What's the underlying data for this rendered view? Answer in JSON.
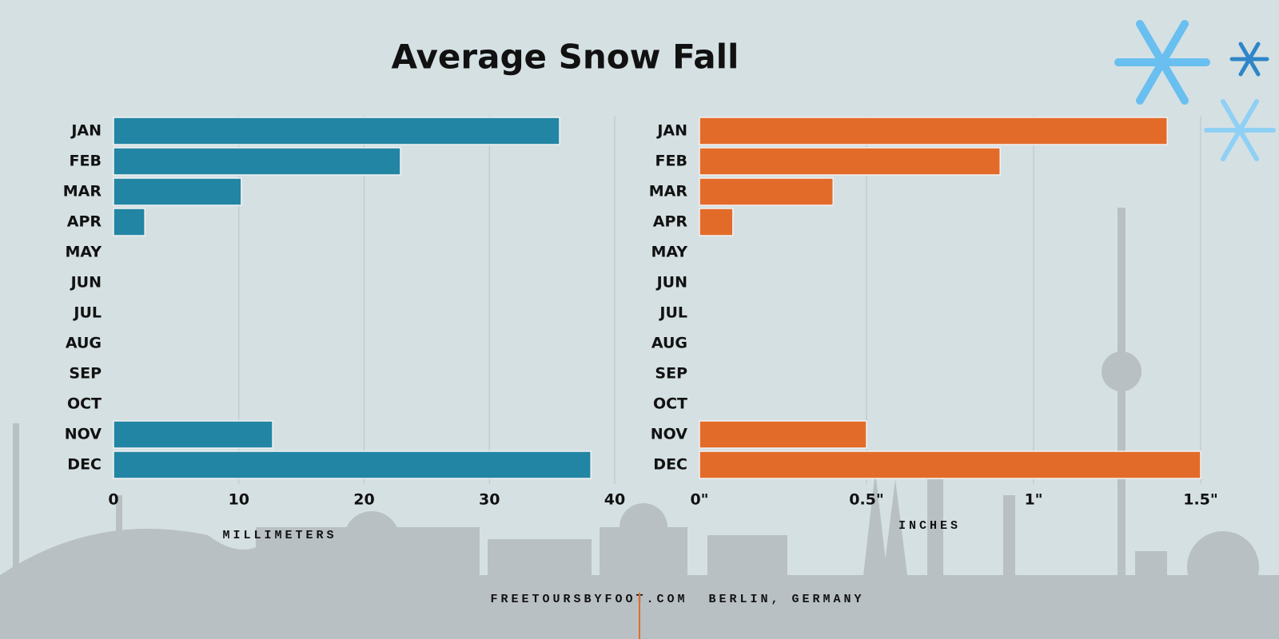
{
  "title": "Average Snow Fall",
  "chart_data": [
    {
      "type": "bar",
      "orientation": "horizontal",
      "color": "#2285a4",
      "categories": [
        "JAN",
        "FEB",
        "MAR",
        "APR",
        "MAY",
        "JUN",
        "JUL",
        "AUG",
        "SEP",
        "OCT",
        "NOV",
        "DEC"
      ],
      "values": [
        35.6,
        22.9,
        10.2,
        2.5,
        0,
        0,
        0,
        0,
        0,
        0,
        12.7,
        38.1
      ],
      "xlim": [
        0,
        40
      ],
      "xticks": [
        0,
        10,
        20,
        30,
        40
      ],
      "xlabel": "MILLIMETERS",
      "grid": true
    },
    {
      "type": "bar",
      "orientation": "horizontal",
      "color": "#e36b2a",
      "categories": [
        "JAN",
        "FEB",
        "MAR",
        "APR",
        "MAY",
        "JUN",
        "JUL",
        "AUG",
        "SEP",
        "OCT",
        "NOV",
        "DEC"
      ],
      "values": [
        1.4,
        0.9,
        0.4,
        0.1,
        0,
        0,
        0,
        0,
        0,
        0,
        0.5,
        1.5
      ],
      "xlim": [
        0,
        1.5
      ],
      "xticks": [
        {
          "value": 0,
          "label": "0\""
        },
        {
          "value": 0.5,
          "label": "0.5\""
        },
        {
          "value": 1,
          "label": "1\""
        },
        {
          "value": 1.5,
          "label": "1.5\""
        }
      ],
      "xlabel": "INCHES",
      "grid": true
    }
  ],
  "footer": {
    "site": "FREETOURSBYFOOT.COM",
    "location": "BERLIN, GERMANY"
  }
}
